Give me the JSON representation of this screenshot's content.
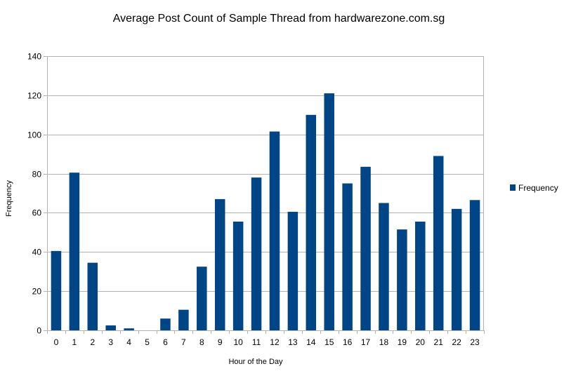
{
  "chart_data": {
    "type": "bar",
    "title": "Average Post Count of Sample Thread from hardwarezone.com.sg",
    "xlabel": "Hour of the Day",
    "ylabel": "Frequency",
    "ylim": [
      0,
      140
    ],
    "yticks": [
      0,
      20,
      40,
      60,
      80,
      100,
      120,
      140
    ],
    "grid": true,
    "legend_position": "right",
    "categories": [
      "0",
      "1",
      "2",
      "3",
      "4",
      "5",
      "6",
      "7",
      "8",
      "9",
      "10",
      "11",
      "12",
      "13",
      "14",
      "15",
      "16",
      "17",
      "18",
      "19",
      "20",
      "21",
      "22",
      "23"
    ],
    "series": [
      {
        "name": "Frequency",
        "color": "#004586",
        "values": [
          40.5,
          80.5,
          34.5,
          2.5,
          1,
          0,
          6,
          10.5,
          32.5,
          67,
          55.5,
          78,
          101.5,
          60.5,
          110,
          121,
          75,
          83.5,
          65,
          51.5,
          55.5,
          89,
          62,
          66.5
        ]
      }
    ]
  }
}
